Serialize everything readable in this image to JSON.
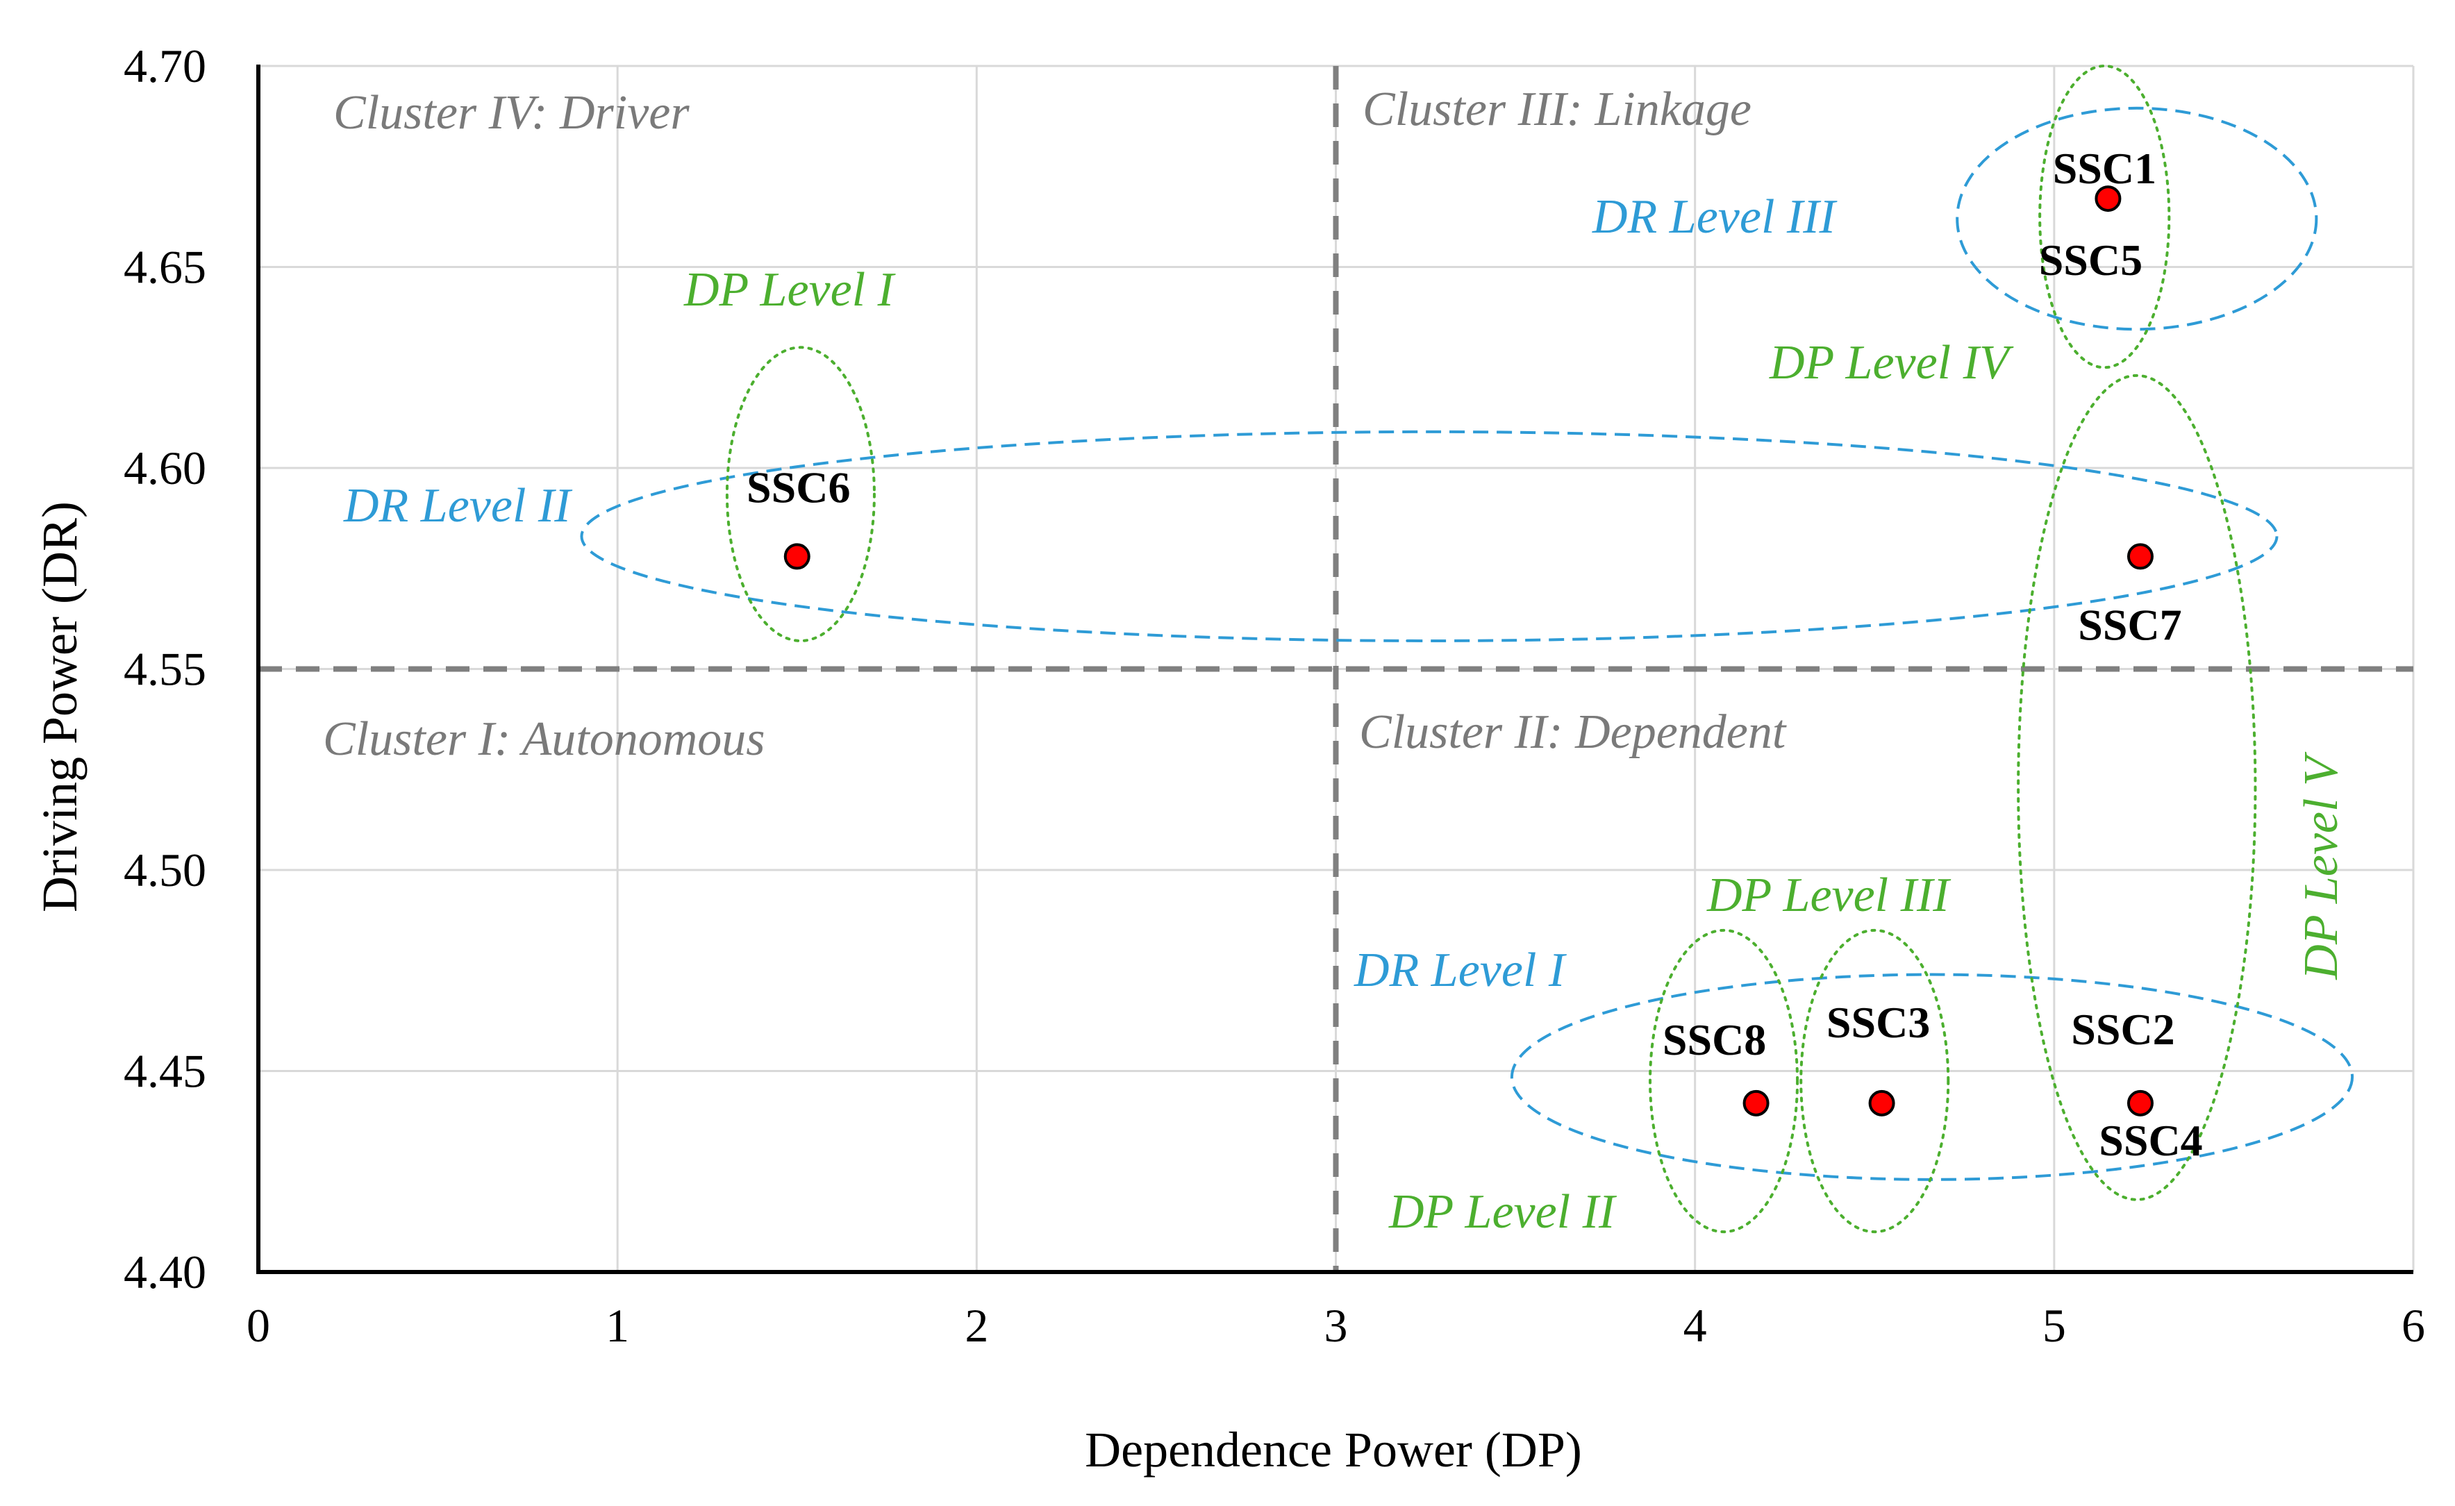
{
  "chart_data": {
    "type": "scatter",
    "xlabel": "Dependence Power (DP)",
    "ylabel": "Driving Power (DR)",
    "xlim": [
      0,
      6
    ],
    "ylim": [
      4.4,
      4.7
    ],
    "x_ticks": [
      0,
      1,
      2,
      3,
      4,
      5,
      6
    ],
    "y_ticks": [
      4.4,
      4.45,
      4.5,
      4.55,
      4.6,
      4.65,
      4.7
    ],
    "x_tick_labels": [
      "0",
      "1",
      "2",
      "3",
      "4",
      "5",
      "6"
    ],
    "y_tick_labels": [
      "4.40",
      "4.45",
      "4.50",
      "4.55",
      "4.60",
      "4.65",
      "4.70"
    ],
    "grid": true,
    "threshold_x": 3,
    "threshold_y": 4.55,
    "points": [
      {
        "label": "SSC1",
        "x": 5.15,
        "y": 4.667
      },
      {
        "label": "SSC5",
        "x": 5.15,
        "y": 4.667
      },
      {
        "label": "SSC6",
        "x": 1.5,
        "y": 4.578
      },
      {
        "label": "SSC7",
        "x": 5.24,
        "y": 4.578
      },
      {
        "label": "SSC8",
        "x": 4.17,
        "y": 4.442
      },
      {
        "label": "SSC3",
        "x": 4.52,
        "y": 4.442
      },
      {
        "label": "SSC2",
        "x": 5.24,
        "y": 4.442
      },
      {
        "label": "SSC4",
        "x": 5.24,
        "y": 4.442
      }
    ],
    "clusters": [
      {
        "name": "Cluster IV: Driver",
        "quadrant": "top-left"
      },
      {
        "name": "Cluster III: Linkage",
        "quadrant": "top-right"
      },
      {
        "name": "Cluster I: Autonomous",
        "quadrant": "bottom-left"
      },
      {
        "name": "Cluster II: Dependent",
        "quadrant": "bottom-right"
      }
    ],
    "dr_levels": [
      {
        "label": "DR Level  I",
        "members": [
          "SSC8",
          "SSC3",
          "SSC2",
          "SSC4"
        ],
        "cx": 4.66,
        "cy": 4.4485,
        "rx": 1.17,
        "ry": 0.0255
      },
      {
        "label": "DR Level  II",
        "members": [
          "SSC6",
          "SSC7"
        ],
        "cx": 3.26,
        "cy": 4.583,
        "rx": 2.36,
        "ry": 0.026
      },
      {
        "label": "DR Level  III",
        "members": [
          "SSC1",
          "SSC5"
        ],
        "cx": 5.23,
        "cy": 4.662,
        "rx": 0.5,
        "ry": 0.0275
      }
    ],
    "dp_levels": [
      {
        "label": "DP Level I",
        "members": [
          "SSC6"
        ],
        "cx": 1.51,
        "cy": 4.5935,
        "rx": 0.205,
        "ry": 0.0365
      },
      {
        "label": "DP Level II",
        "members": [
          "SSC8"
        ],
        "cx": 4.08,
        "cy": 4.4475,
        "rx": 0.205,
        "ry": 0.0375
      },
      {
        "label": "DP Level III",
        "members": [
          "SSC3"
        ],
        "cx": 4.5,
        "cy": 4.4475,
        "rx": 0.205,
        "ry": 0.0375
      },
      {
        "label": "DP Level IV",
        "members": [
          "SSC1",
          "SSC5"
        ],
        "cx": 5.14,
        "cy": 4.6625,
        "rx": 0.18,
        "ry": 0.0375
      },
      {
        "label": "DP Level V",
        "members": [
          "SSC7",
          "SSC2",
          "SSC4"
        ],
        "cx": 5.23,
        "cy": 4.5205,
        "rx": 0.33,
        "ry": 0.1025
      }
    ],
    "colors": {
      "point": "#ff0000",
      "dr_level": "#2e9bd6",
      "dp_level": "#4caf2f",
      "cluster_label": "#7a7a7a",
      "threshold": "#808080",
      "grid": "#d9d9d9"
    }
  }
}
